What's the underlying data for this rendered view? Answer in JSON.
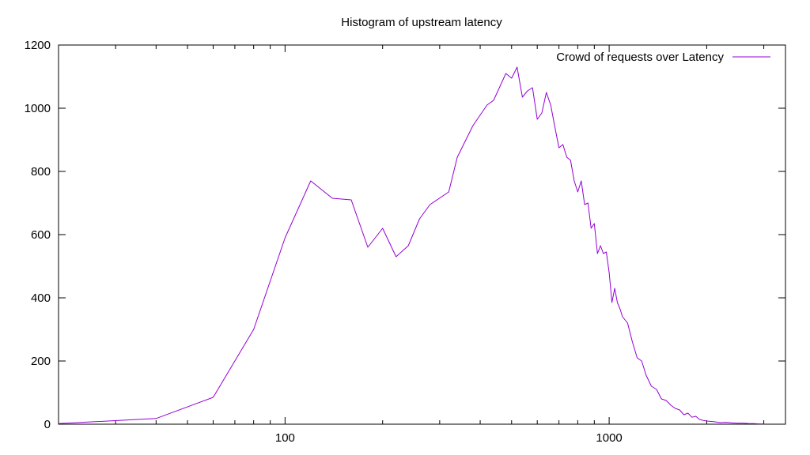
{
  "chart_data": {
    "type": "line",
    "title": "Histogram of upstream latency",
    "xlabel": "",
    "ylabel": "",
    "xscale": "log",
    "xlim": [
      20,
      3500
    ],
    "ylim": [
      0,
      1200
    ],
    "x_ticks": [
      100,
      1000
    ],
    "x_tick_labels": [
      "100",
      "1000"
    ],
    "y_ticks": [
      0,
      200,
      400,
      600,
      800,
      1000,
      1200
    ],
    "y_tick_labels": [
      "0",
      "200",
      "400",
      "600",
      "800",
      "1000",
      "1200"
    ],
    "grid": false,
    "legend_position": "top-right",
    "series": [
      {
        "name": "Crowd of requests over Latency",
        "color": "#9400d3",
        "x": [
          20,
          40,
          60,
          80,
          100,
          120,
          140,
          160,
          180,
          200,
          220,
          240,
          260,
          280,
          320,
          340,
          380,
          420,
          440,
          480,
          500,
          520,
          540,
          560,
          580,
          600,
          620,
          640,
          660,
          680,
          700,
          720,
          740,
          760,
          780,
          800,
          820,
          840,
          860,
          880,
          900,
          920,
          940,
          960,
          980,
          1000,
          1020,
          1040,
          1060,
          1080,
          1100,
          1140,
          1180,
          1220,
          1260,
          1300,
          1350,
          1400,
          1450,
          1500,
          1550,
          1600,
          1650,
          1700,
          1750,
          1800,
          1850,
          1900,
          1950,
          2000,
          2100,
          2200,
          2300,
          2400,
          2500,
          2600,
          2700,
          2800,
          2900,
          3000
        ],
        "y": [
          2,
          18,
          85,
          300,
          590,
          770,
          715,
          710,
          560,
          620,
          530,
          565,
          650,
          695,
          735,
          845,
          945,
          1010,
          1025,
          1110,
          1095,
          1130,
          1035,
          1055,
          1065,
          965,
          985,
          1050,
          1010,
          940,
          875,
          885,
          845,
          835,
          770,
          735,
          770,
          695,
          700,
          620,
          635,
          540,
          565,
          540,
          545,
          480,
          385,
          430,
          385,
          365,
          340,
          320,
          260,
          210,
          200,
          155,
          120,
          110,
          80,
          75,
          60,
          50,
          45,
          30,
          35,
          22,
          25,
          15,
          12,
          10,
          8,
          5,
          6,
          4,
          3,
          3,
          2,
          2,
          1,
          1
        ]
      }
    ]
  }
}
